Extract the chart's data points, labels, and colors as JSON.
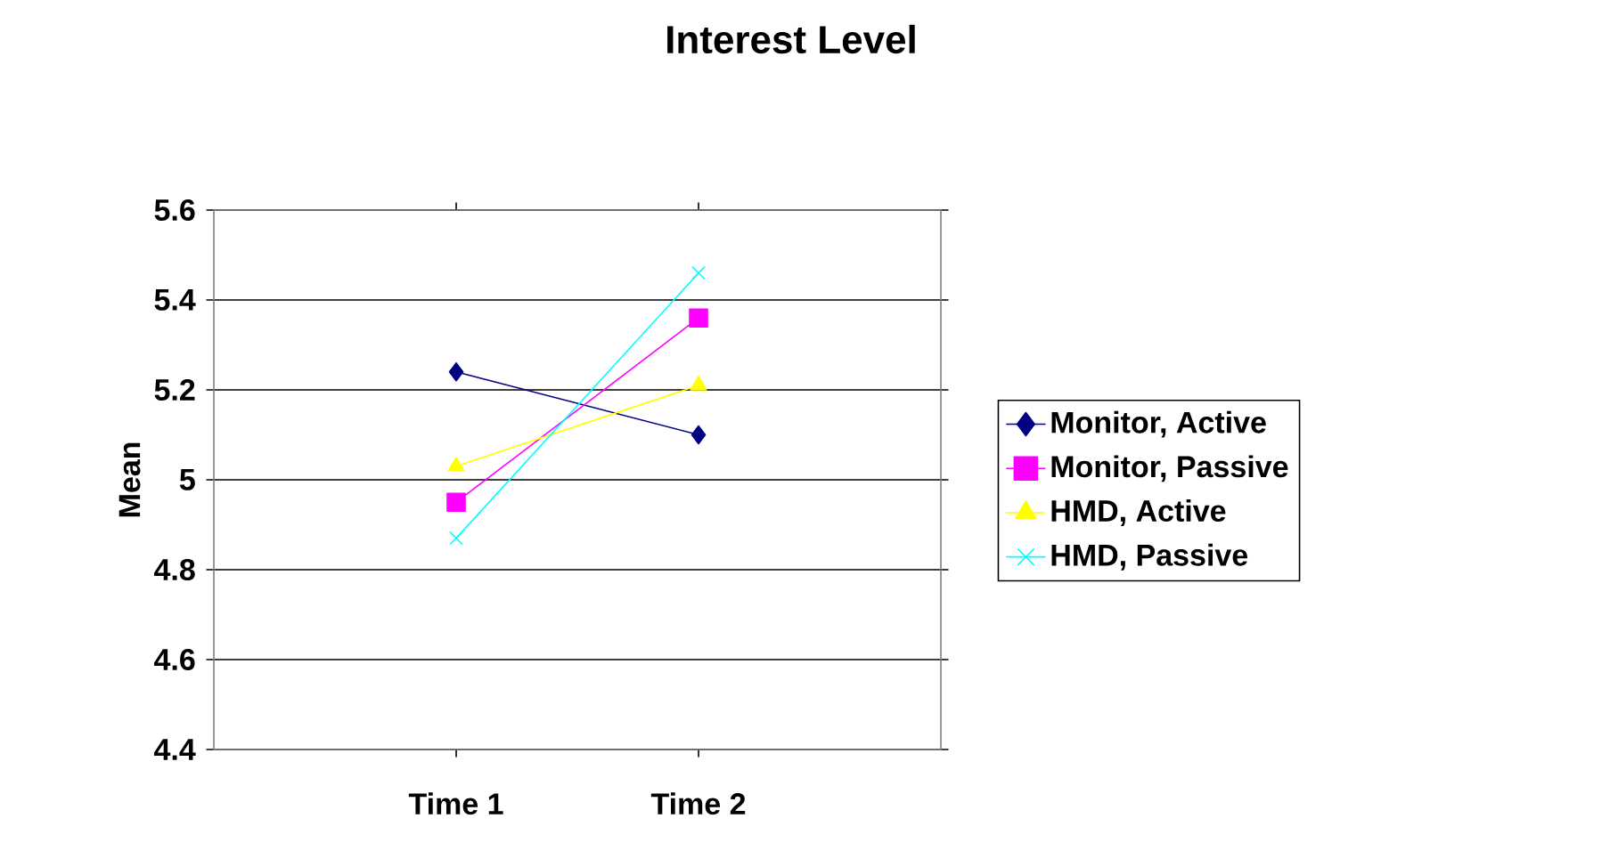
{
  "chart_data": {
    "type": "line",
    "title": "Interest Level",
    "ylabel": "Mean",
    "categories": [
      "Time 1",
      "Time 2"
    ],
    "series": [
      {
        "name": "Monitor, Active",
        "color": "#000080",
        "marker": "diamond",
        "values": [
          5.24,
          5.1
        ]
      },
      {
        "name": "Monitor, Passive",
        "color": "#ff00ff",
        "marker": "square",
        "values": [
          4.95,
          5.36
        ]
      },
      {
        "name": "HMD, Active",
        "color": "#ffff00",
        "marker": "triangle",
        "values": [
          5.03,
          5.21
        ]
      },
      {
        "name": "HMD, Passive",
        "color": "#00ffff",
        "marker": "cross",
        "values": [
          4.87,
          5.46
        ]
      }
    ],
    "ylim": [
      4.4,
      5.6
    ],
    "yticks": [
      4.4,
      4.6,
      4.8,
      5,
      5.2,
      5.4,
      5.6
    ],
    "grid": "y",
    "legend": "right",
    "line_style": "solid"
  }
}
